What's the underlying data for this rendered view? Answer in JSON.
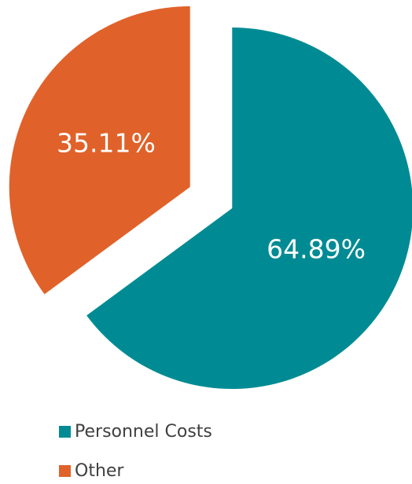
{
  "chart_data": {
    "type": "pie",
    "categories": [
      "Personnel Costs",
      "Other"
    ],
    "values": [
      64.89,
      35.11
    ],
    "value_labels": [
      "64.89%",
      "35.11%"
    ],
    "colors": [
      "#008b94",
      "#e0622a"
    ],
    "legend": "bottom"
  }
}
